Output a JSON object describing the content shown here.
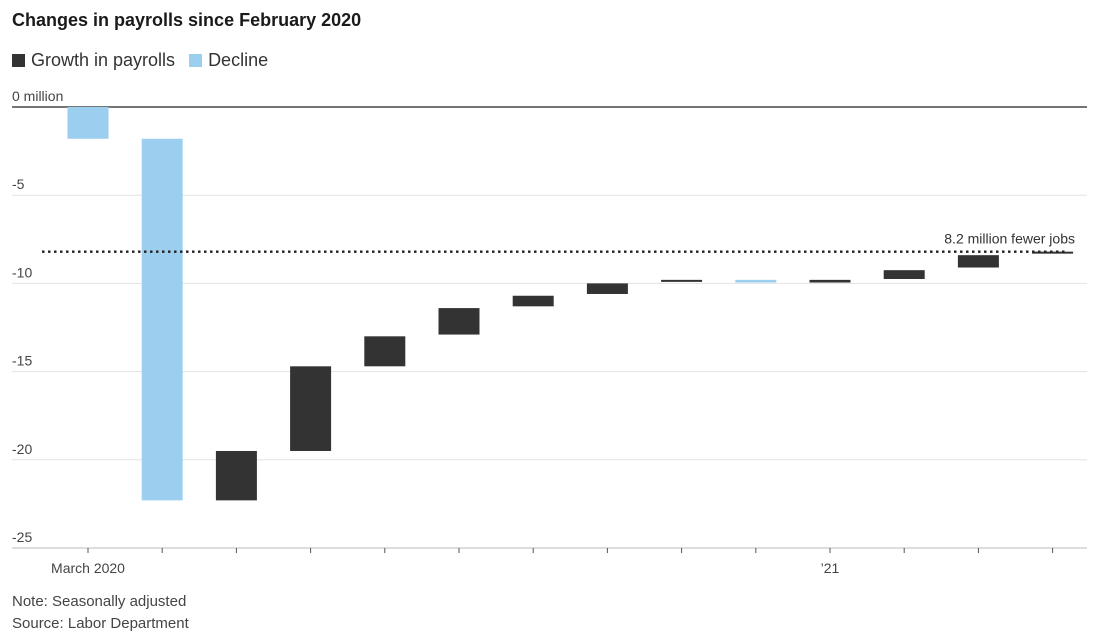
{
  "colors": {
    "growth": "#333333",
    "decline": "#9ccfef",
    "grid": "#e3e3e3",
    "zero_line": "#222222",
    "axis": "#bbbbbb"
  },
  "chart_data": {
    "type": "bar",
    "subtype": "waterfall",
    "title": "Changes in payrolls since February 2020",
    "legend": [
      "Growth in payrolls",
      "Decline"
    ],
    "legend_placement": "top-left",
    "ylim": [
      -25,
      0
    ],
    "y_ticks": [
      {
        "value": 0,
        "label": "0 million"
      },
      {
        "value": -5,
        "label": "-5"
      },
      {
        "value": -10,
        "label": "-10"
      },
      {
        "value": -15,
        "label": "-15"
      },
      {
        "value": -20,
        "label": "-20"
      },
      {
        "value": -25,
        "label": "-25"
      }
    ],
    "x_tick_labels": [
      {
        "index": 0,
        "label": "March 2020"
      },
      {
        "index": 10,
        "label": "’21"
      }
    ],
    "grid": true,
    "reference_line": {
      "value": -8.2,
      "label": "8.2 million fewer jobs"
    },
    "bars": [
      {
        "month": "2020-03",
        "from": 0,
        "to": -1.8,
        "type": "decline"
      },
      {
        "month": "2020-04",
        "from": -1.8,
        "to": -22.3,
        "type": "decline"
      },
      {
        "month": "2020-05",
        "from": -22.3,
        "to": -19.5,
        "type": "growth"
      },
      {
        "month": "2020-06",
        "from": -19.5,
        "to": -14.7,
        "type": "growth"
      },
      {
        "month": "2020-07",
        "from": -14.7,
        "to": -13.0,
        "type": "growth"
      },
      {
        "month": "2020-08",
        "from": -12.9,
        "to": -11.4,
        "type": "growth"
      },
      {
        "month": "2020-09",
        "from": -11.3,
        "to": -10.7,
        "type": "growth"
      },
      {
        "month": "2020-10",
        "from": -10.6,
        "to": -10.0,
        "type": "growth"
      },
      {
        "month": "2020-11",
        "from": -9.9,
        "to": -9.8,
        "type": "growth"
      },
      {
        "month": "2020-12",
        "from": -9.8,
        "to": -9.95,
        "type": "decline"
      },
      {
        "month": "2021-01",
        "from": -9.95,
        "to": -9.8,
        "type": "growth"
      },
      {
        "month": "2021-02",
        "from": -9.75,
        "to": -9.25,
        "type": "growth"
      },
      {
        "month": "2021-03",
        "from": -9.1,
        "to": -8.4,
        "type": "growth"
      },
      {
        "month": "2021-04",
        "from": -8.3,
        "to": -8.2,
        "type": "growth"
      }
    ]
  },
  "notes": {
    "note": "Note: Seasonally adjusted",
    "source": "Source: Labor Department"
  }
}
